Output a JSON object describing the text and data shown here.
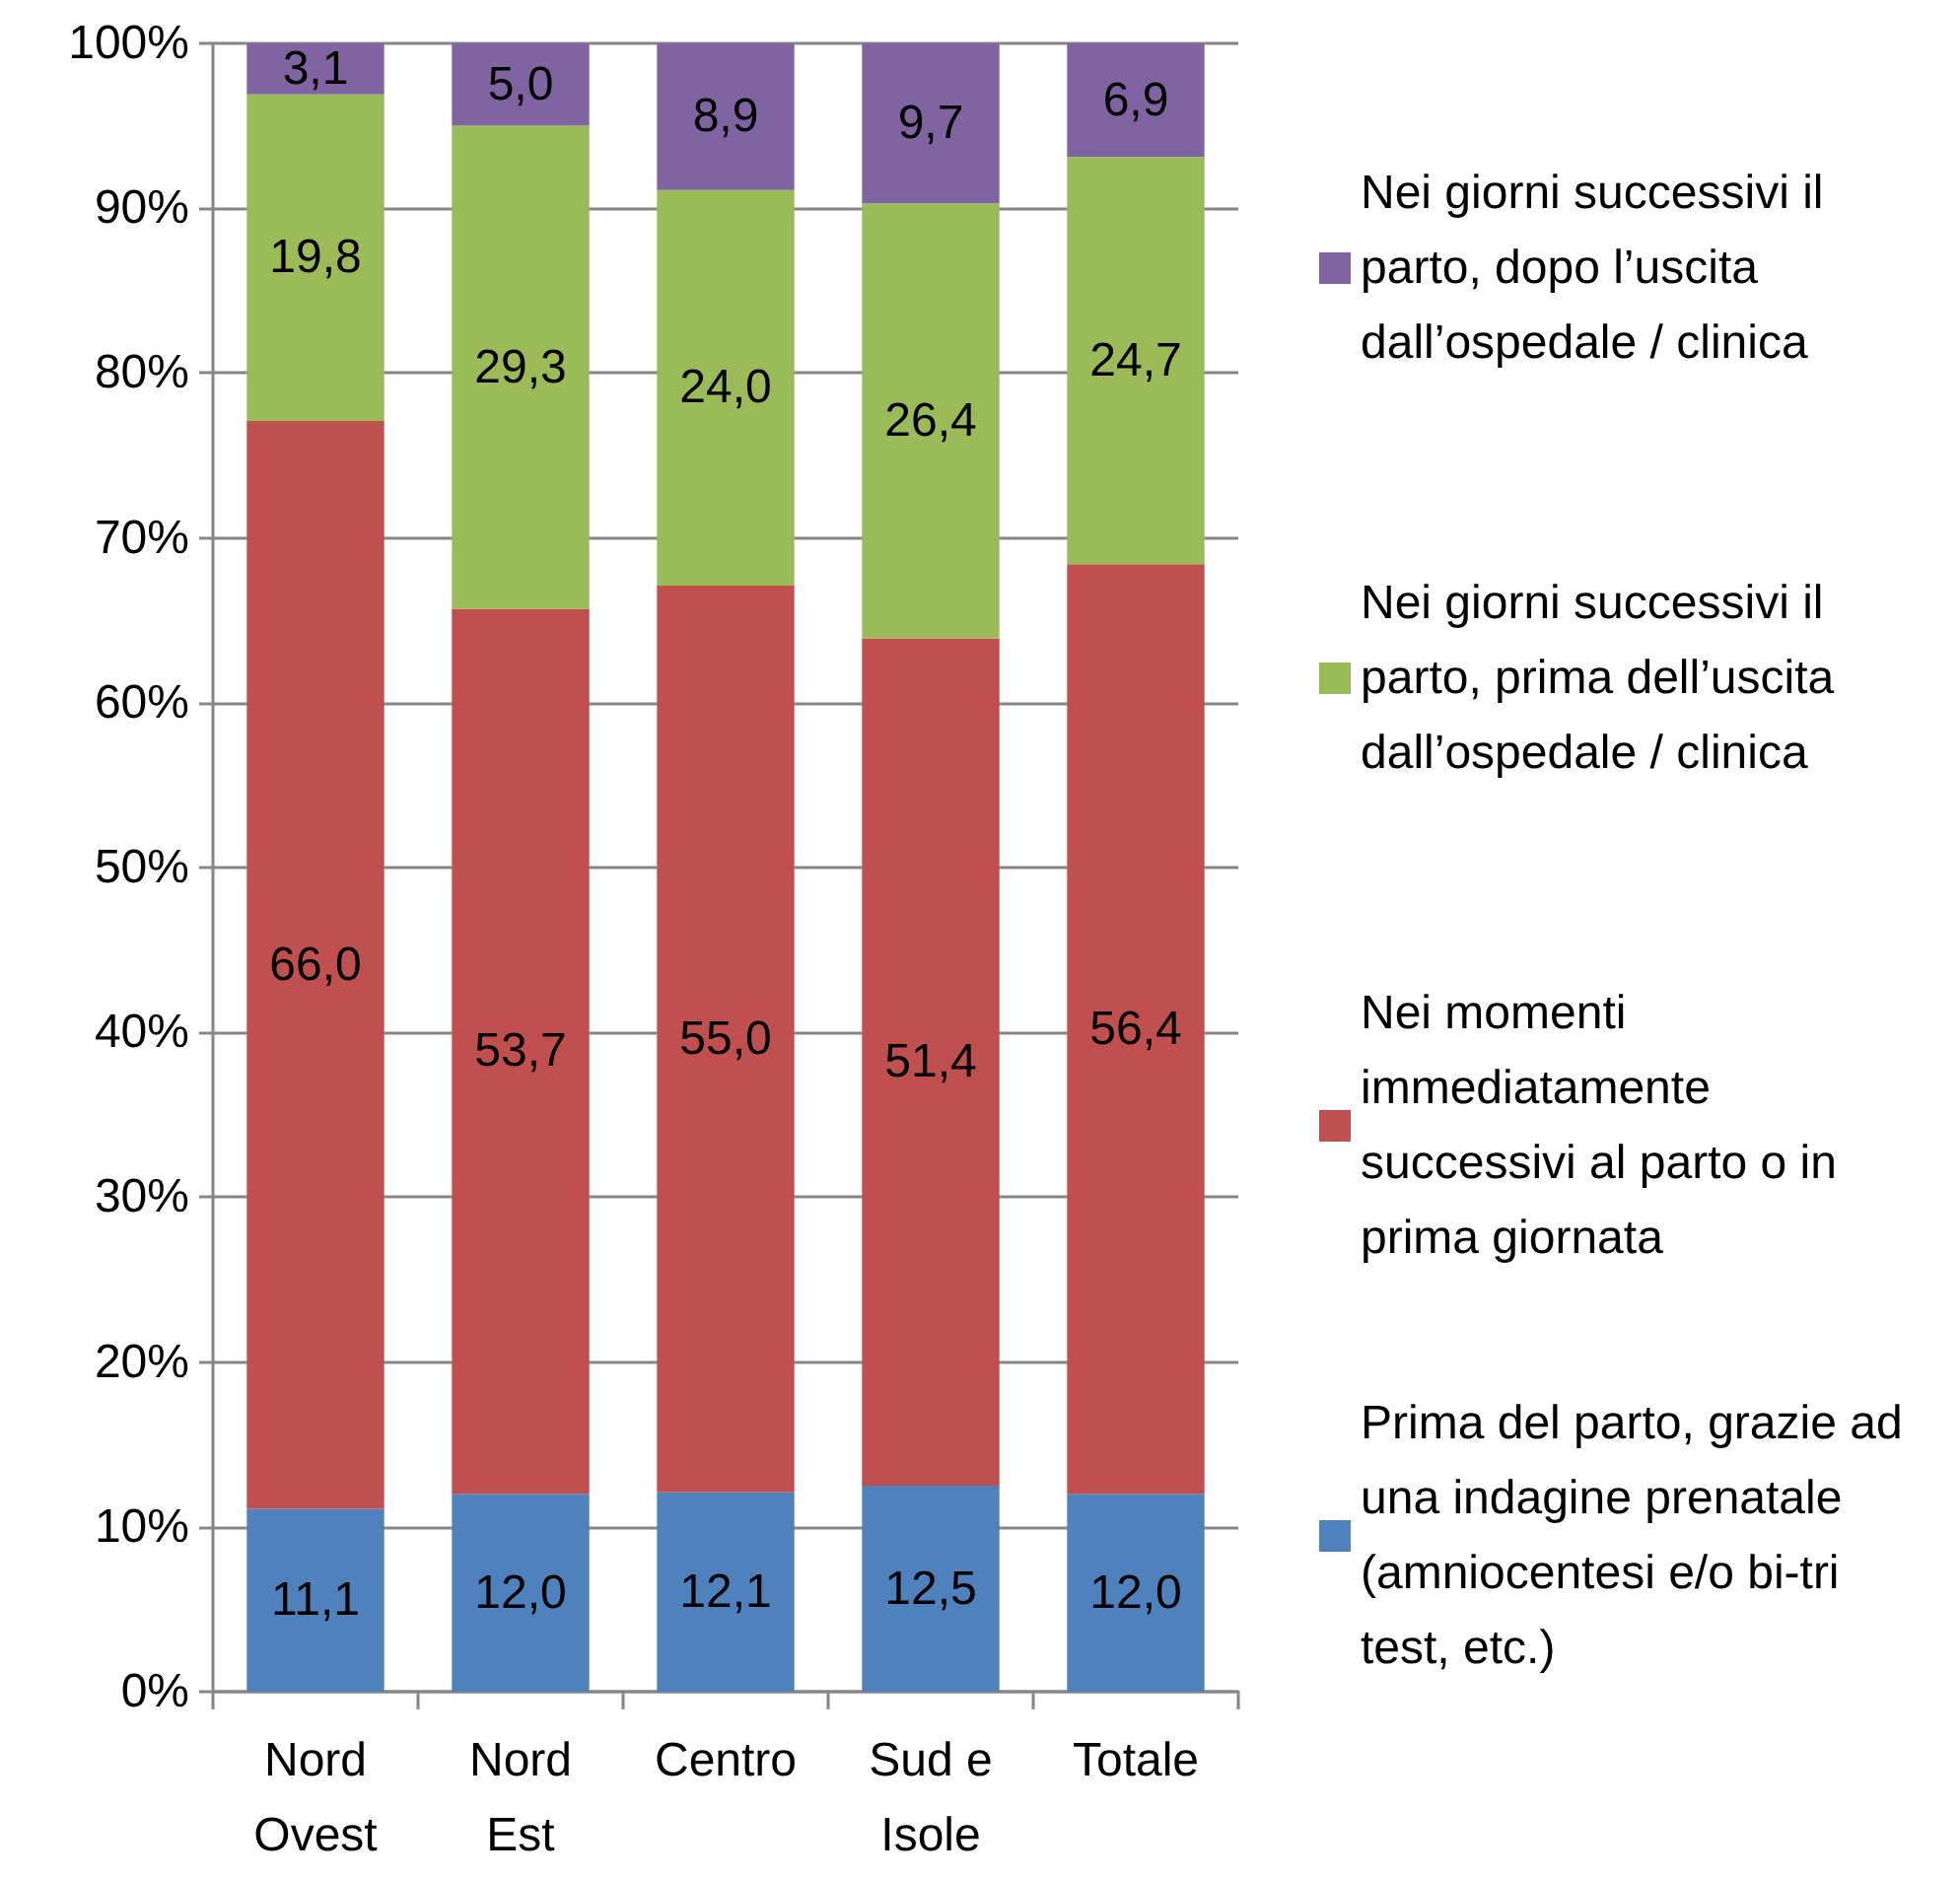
{
  "chart_data": {
    "type": "bar",
    "stacked": true,
    "categories": [
      "Nord Ovest",
      "Nord Est",
      "Centro",
      "Sud e Isole",
      "Totale"
    ],
    "series": [
      {
        "name": "Prima del parto, grazie ad una indagine prenatale (amniocentesi e/o bi-tri test, etc.)",
        "color": "#4f81bd",
        "values": [
          11.1,
          12.0,
          12.1,
          12.5,
          12.0
        ],
        "value_labels": [
          "11,1",
          "12,0",
          "12,1",
          "12,5",
          "12,0"
        ]
      },
      {
        "name": "Nei momenti immediatamente successivi al parto o in prima giornata",
        "color": "#c0504d",
        "values": [
          66.0,
          53.7,
          55.0,
          51.4,
          56.4
        ],
        "value_labels": [
          "66,0",
          "53,7",
          "55,0",
          "51,4",
          "56,4"
        ]
      },
      {
        "name": "Nei giorni successivi il parto, prima dell’uscita dall’ospedale / clinica",
        "color": "#9bbb59",
        "values": [
          19.8,
          29.3,
          24.0,
          26.4,
          24.7
        ],
        "value_labels": [
          "19,8",
          "29,3",
          "24,0",
          "26,4",
          "24,7"
        ]
      },
      {
        "name": "Nei giorni successivi il parto, dopo l’uscita dall’ospedale / clinica",
        "color": "#8064a2",
        "values": [
          3.1,
          5.0,
          8.9,
          9.7,
          6.9
        ],
        "value_labels": [
          "3,1",
          "5,0",
          "8,9",
          "9,7",
          "6,9"
        ]
      }
    ],
    "ylim": [
      0,
      100
    ],
    "yticks": [
      {
        "value": 0,
        "label": "0%"
      },
      {
        "value": 10,
        "label": "10%"
      },
      {
        "value": 20,
        "label": "20%"
      },
      {
        "value": 30,
        "label": "30%"
      },
      {
        "value": 40,
        "label": "40%"
      },
      {
        "value": 50,
        "label": "50%"
      },
      {
        "value": 60,
        "label": "60%"
      },
      {
        "value": 70,
        "label": "70%"
      },
      {
        "value": 80,
        "label": "80%"
      },
      {
        "value": 90,
        "label": "90%"
      },
      {
        "value": 100,
        "label": "100%"
      }
    ],
    "grid": "y",
    "legend": "right"
  }
}
